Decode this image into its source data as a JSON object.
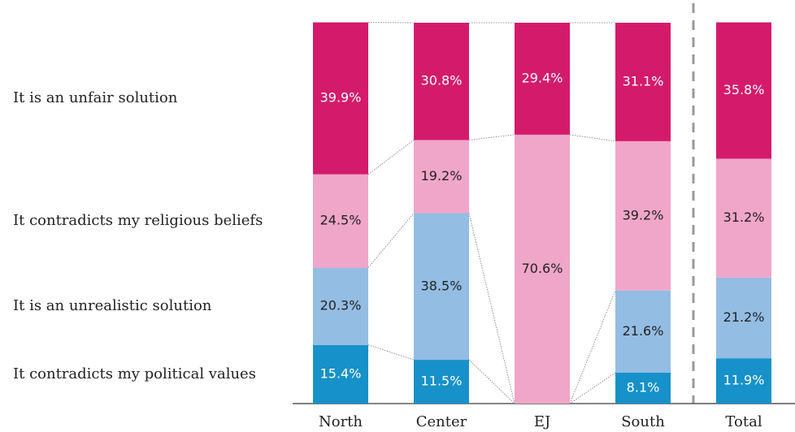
{
  "chart_data": {
    "type": "stacked_bar",
    "categories": [
      "North",
      "Center",
      "EJ",
      "South",
      "Total"
    ],
    "series": [
      {
        "name": "It contradicts my political values",
        "color": "#1791c9",
        "values": [
          15.4,
          11.5,
          null,
          8.1,
          11.9
        ],
        "value_labels": [
          "15.4%",
          "11.5%",
          null,
          "8.1%",
          "11.9%"
        ]
      },
      {
        "name": "It is an unrealistic solution",
        "color": "#93bde3",
        "values": [
          20.3,
          38.5,
          null,
          21.6,
          21.2
        ],
        "value_labels": [
          "20.3%",
          "38.5%",
          null,
          "21.6%",
          "21.2%"
        ]
      },
      {
        "name": "It contradicts my religious beliefs",
        "color": "#f0a6c8",
        "values": [
          24.5,
          19.2,
          70.6,
          39.2,
          31.2
        ],
        "value_labels": [
          "24.5%",
          "19.2%",
          "70.6%",
          "39.2%",
          "31.2%"
        ]
      },
      {
        "name": "It is an unfair solution",
        "color": "#d41b6b",
        "values": [
          39.9,
          30.8,
          29.4,
          31.1,
          35.8
        ],
        "value_labels": [
          "39.9%",
          "30.8%",
          "29.4%",
          "31.1%",
          "35.8%"
        ]
      }
    ],
    "ylim": [
      0,
      100
    ]
  }
}
